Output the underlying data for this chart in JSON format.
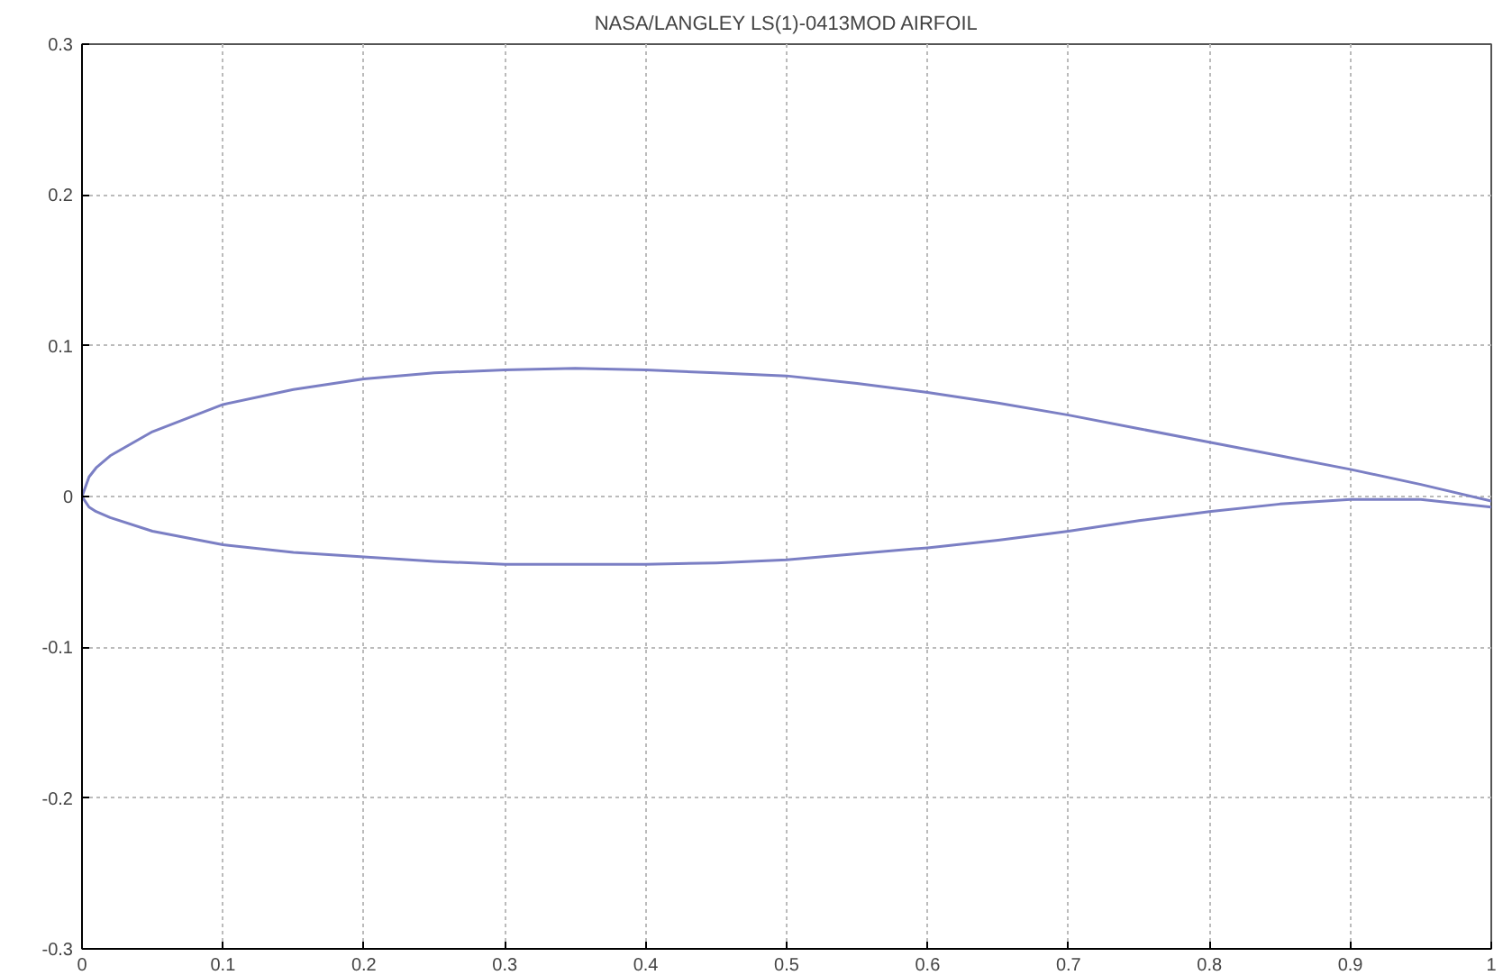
{
  "chart_data": {
    "type": "line",
    "title": "NASA/LANGLEY LS(1)-0413MOD AIRFOIL",
    "xlim": [
      0,
      1
    ],
    "ylim": [
      -0.3,
      0.3
    ],
    "xticks": [
      0,
      0.1,
      0.2,
      0.3,
      0.4,
      0.5,
      0.6,
      0.7,
      0.8,
      0.9,
      1
    ],
    "yticks": [
      -0.3,
      -0.2,
      -0.1,
      0,
      0.1,
      0.2,
      0.3
    ],
    "grid": true,
    "series": [
      {
        "color": "#7b7fc4",
        "x": [
          0,
          0.005,
          0.01,
          0.02,
          0.05,
          0.1,
          0.15,
          0.2,
          0.25,
          0.3,
          0.35,
          0.4,
          0.45,
          0.5,
          0.55,
          0.6,
          0.65,
          0.7,
          0.75,
          0.8,
          0.85,
          0.9,
          0.95,
          1
        ],
        "values": [
          0,
          0.013,
          0.019,
          0.027,
          0.043,
          0.061,
          0.071,
          0.078,
          0.082,
          0.084,
          0.085,
          0.084,
          0.082,
          0.08,
          0.075,
          0.069,
          0.062,
          0.054,
          0.045,
          0.036,
          0.027,
          0.018,
          0.008,
          -0.003
        ]
      },
      {
        "color": "#7b7fc4",
        "x": [
          0,
          0.005,
          0.01,
          0.02,
          0.05,
          0.1,
          0.15,
          0.2,
          0.25,
          0.3,
          0.35,
          0.4,
          0.45,
          0.5,
          0.55,
          0.6,
          0.65,
          0.7,
          0.75,
          0.8,
          0.85,
          0.9,
          0.95,
          1
        ],
        "values": [
          0,
          -0.007,
          -0.01,
          -0.014,
          -0.023,
          -0.032,
          -0.037,
          -0.04,
          -0.043,
          -0.045,
          -0.045,
          -0.045,
          -0.044,
          -0.042,
          -0.038,
          -0.034,
          -0.029,
          -0.023,
          -0.016,
          -0.01,
          -0.005,
          -0.002,
          -0.002,
          -0.007
        ]
      }
    ]
  }
}
